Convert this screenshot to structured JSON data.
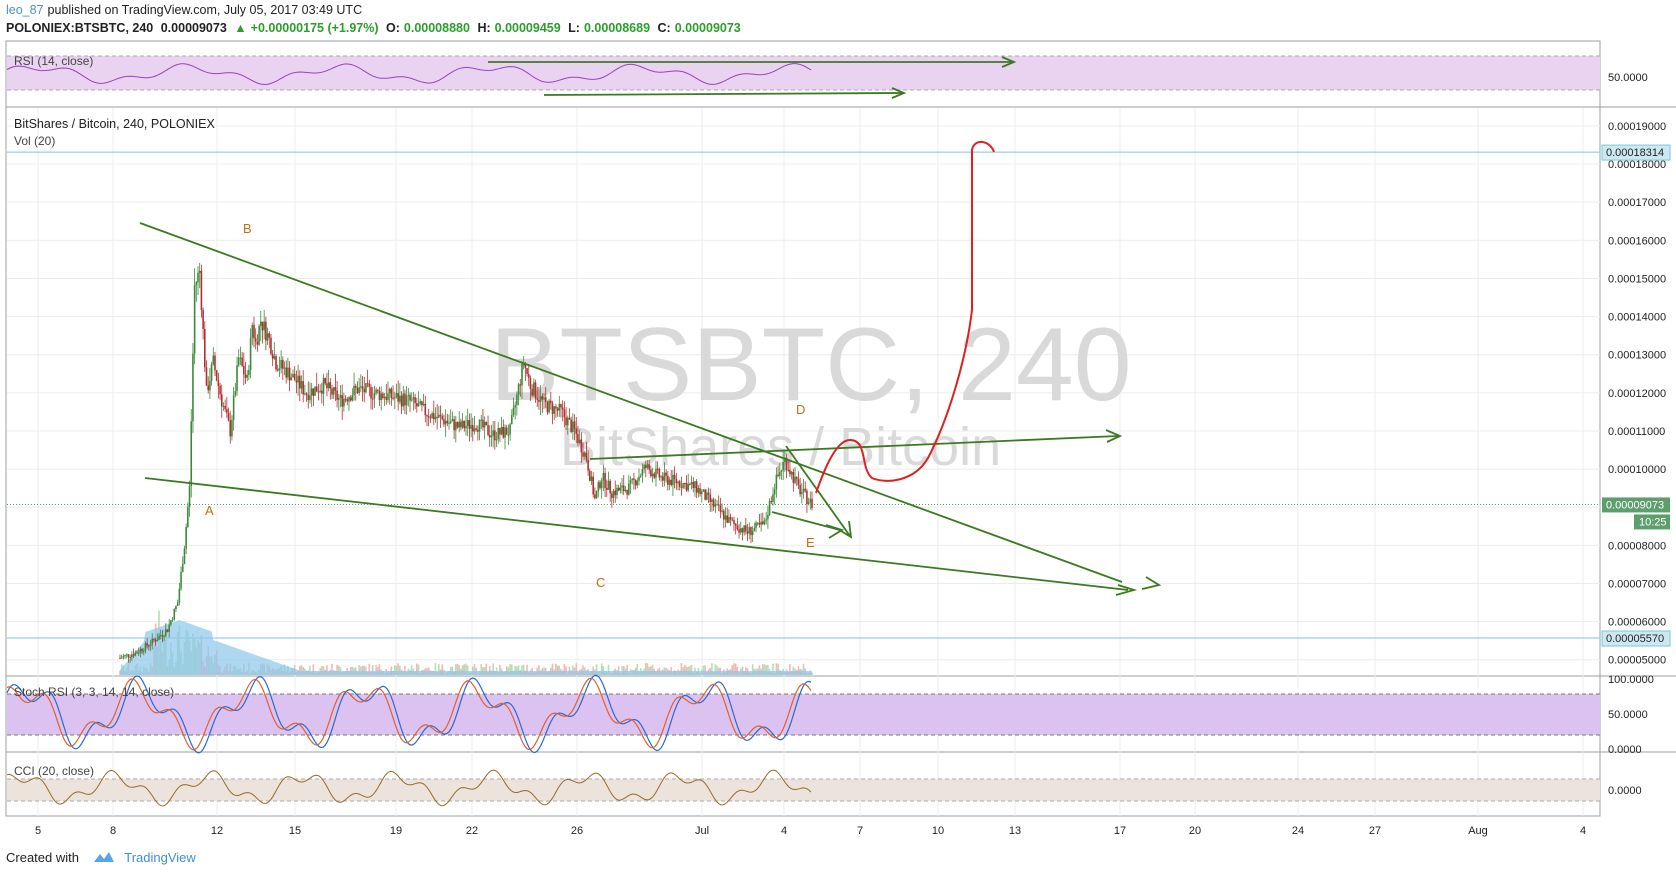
{
  "header": {
    "author": "leo_87",
    "published": "published on TradingView.com, July 05, 2017 03:49 UTC",
    "symbol": "POLONIEX:BTSBTC, 240",
    "last": "0.00009073",
    "change_arrow": "▲",
    "change": "+0.00000175 (+1.97%)",
    "o_label": "O:",
    "o": "0.00008880",
    "h_label": "H:",
    "h": "0.00009459",
    "l_label": "L:",
    "l": "0.00008689",
    "c_label": "C:",
    "c": "0.00009073"
  },
  "rsi_panel": {
    "label": "RSI (14, close)",
    "level": "50.0000"
  },
  "main_panel": {
    "title": "BitShares / Bitcoin, 240, POLONIEX",
    "vol_label": "Vol (20)",
    "watermark_big": "BTSBTC, 240",
    "watermark_small": "BitShares / Bitcoin",
    "price_ticks": [
      "0.00019000",
      "0.00018000",
      "0.00017000",
      "0.00016000",
      "0.00015000",
      "0.00014000",
      "0.00013000",
      "0.00012000",
      "0.00011000",
      "0.00010000",
      "0.00009000",
      "0.00008000",
      "0.00007000",
      "0.00006000",
      "0.00005000"
    ],
    "price_tick_values": [
      0.00019,
      0.00018,
      0.00017,
      0.00016,
      0.00015,
      0.00014,
      0.00013,
      0.00012,
      0.00011,
      0.0001,
      9e-05,
      8e-05,
      7e-05,
      6e-05,
      5e-05
    ],
    "hline_high": {
      "label": "0.00018314",
      "value": 0.00018314
    },
    "hline_low": {
      "label": "0.00005570",
      "value": 5.57e-05
    },
    "last_price": {
      "label": "0.00009073",
      "value": 9.073e-05,
      "countdown": "10:25"
    },
    "wave_labels": [
      "A",
      "B",
      "C",
      "D",
      "E"
    ]
  },
  "stoch_panel": {
    "label": "Stoch RSI (3, 3, 14, 14, close)",
    "ticks": [
      "100.0000",
      "50.0000",
      "0.0000"
    ]
  },
  "cci_panel": {
    "label": "CCI (20, close)",
    "ticks": [
      "0.0000"
    ]
  },
  "time_axis": [
    "5",
    "8",
    "12",
    "15",
    "19",
    "22",
    "26",
    "Jul",
    "4",
    "7",
    "10",
    "13",
    "17",
    "20",
    "24",
    "27",
    "Aug",
    "4"
  ],
  "footer": {
    "created": "Created with",
    "brand": "TradingView"
  },
  "colors": {
    "up": "#3a8a3a",
    "down": "#b03030",
    "trend": "#3a7a20",
    "drawing": "#e02020",
    "rsi_band": "#e9d3f0",
    "stoch_band": "#dcc2f0",
    "cci_band": "#ece4dc",
    "level_line": "#7ac8d8",
    "volume_up": "#b8dcb8",
    "volume_down": "#f0b8b8",
    "vol_ma": "#8cc8ec"
  },
  "chart_data": {
    "type": "candlestick",
    "title": "BitShares / Bitcoin, 240, POLONIEX",
    "y_range": [
      4.6e-05,
      0.0001947
    ],
    "current_price": 9.073e-05,
    "price_path": [
      [
        0,
        5.05e-05
      ],
      [
        10,
        5.2e-05
      ],
      [
        20,
        5.5e-05
      ],
      [
        28,
        5.8e-05
      ],
      [
        34,
        6.5e-05
      ],
      [
        38,
        8e-05
      ],
      [
        41,
        9.5e-05
      ],
      [
        44,
        0.000148
      ],
      [
        47,
        0.000152
      ],
      [
        51,
        0.00012
      ],
      [
        55,
        0.000128
      ],
      [
        60,
        0.000118
      ],
      [
        65,
        0.00011
      ],
      [
        70,
        0.000129
      ],
      [
        75,
        0.000123
      ],
      [
        78,
        0.000138
      ],
      [
        80,
        0.000133
      ],
      [
        83,
        0.000139
      ],
      [
        88,
        0.000134
      ],
      [
        92,
        0.000128
      ],
      [
        100,
        0.000125
      ],
      [
        110,
        0.00012
      ],
      [
        120,
        0.000122
      ],
      [
        130,
        0.000118
      ],
      [
        140,
        0.000121
      ],
      [
        150,
        0.00012
      ],
      [
        160,
        0.000119
      ],
      [
        170,
        0.000118
      ],
      [
        180,
        0.000115
      ],
      [
        190,
        0.000113
      ],
      [
        200,
        0.000111
      ],
      [
        210,
        0.000112
      ],
      [
        220,
        0.000109
      ],
      [
        230,
        0.00011
      ],
      [
        238,
        0.000128
      ],
      [
        242,
        0.000122
      ],
      [
        250,
        0.000117
      ],
      [
        260,
        0.000115
      ],
      [
        268,
        0.00011
      ],
      [
        275,
        0.000103
      ],
      [
        280,
        9.2e-05
      ],
      [
        284,
        9.8e-05
      ],
      [
        290,
        9.4e-05
      ],
      [
        300,
        9.5e-05
      ],
      [
        310,
        0.0001005
      ],
      [
        320,
        9.75e-05
      ],
      [
        330,
        9.65e-05
      ],
      [
        340,
        9.5e-05
      ],
      [
        350,
        9.05e-05
      ],
      [
        360,
        8.6e-05
      ],
      [
        370,
        8.35e-05
      ],
      [
        380,
        8.55e-05
      ],
      [
        386,
        9.6e-05
      ],
      [
        392,
        0.0001025
      ],
      [
        400,
        9.5e-05
      ],
      [
        408,
        9.07e-05
      ]
    ],
    "volume_ma_peak": 5.8e-05,
    "rsi_levels": [
      30,
      50,
      70
    ],
    "stoch_levels": [
      20,
      80
    ],
    "annotations": {
      "A": 8.95e-05,
      "B": 0.0001627,
      "C": 7.34e-05,
      "D": 0.0001178,
      "E": 8.43e-05
    }
  }
}
